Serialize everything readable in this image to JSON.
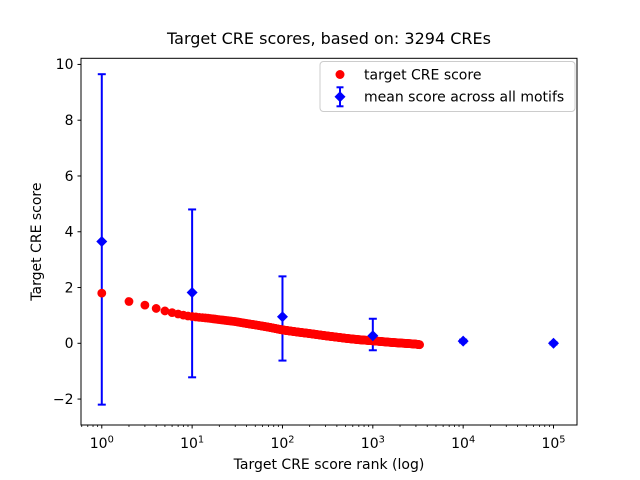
{
  "window": {
    "background": "#ffffff"
  },
  "chart_data": {
    "type": "scatter",
    "title": "Target CRE scores, based on: 3294 CREs",
    "xlabel": "Target CRE score rank (log)",
    "ylabel": "Target CRE score",
    "n_cres": 3294,
    "x_scale": "log",
    "xlim_log10": [
      -0.23,
      5.26
    ],
    "ylim": [
      -2.93,
      10.22
    ],
    "grid": false,
    "legend_position": "upper right",
    "x_tick_base": "10",
    "x_tick_exponents": [
      0,
      1,
      2,
      3,
      4,
      5
    ],
    "y_ticks": [
      {
        "value": -2,
        "label": "−2"
      },
      {
        "value": 0,
        "label": "0"
      },
      {
        "value": 2,
        "label": "2"
      },
      {
        "value": 4,
        "label": "4"
      },
      {
        "value": 6,
        "label": "6"
      },
      {
        "value": 8,
        "label": "8"
      },
      {
        "value": 10,
        "label": "10"
      }
    ],
    "series": [
      {
        "name": "target CRE score",
        "marker": "circle",
        "color": "#ff0000",
        "rank_score_samples": [
          [
            1,
            1.8
          ],
          [
            2,
            1.5
          ],
          [
            3,
            1.37
          ],
          [
            4,
            1.25
          ],
          [
            5,
            1.16
          ],
          [
            6,
            1.1
          ],
          [
            7,
            1.05
          ],
          [
            8,
            1.01
          ],
          [
            9,
            0.98
          ],
          [
            10,
            0.96
          ],
          [
            12,
            0.93
          ],
          [
            15,
            0.9
          ],
          [
            20,
            0.85
          ],
          [
            25,
            0.81
          ],
          [
            30,
            0.78
          ],
          [
            40,
            0.71
          ],
          [
            50,
            0.66
          ],
          [
            70,
            0.58
          ],
          [
            100,
            0.48
          ],
          [
            150,
            0.4
          ],
          [
            200,
            0.35
          ],
          [
            300,
            0.27
          ],
          [
            400,
            0.22
          ],
          [
            500,
            0.18
          ],
          [
            700,
            0.13
          ],
          [
            1000,
            0.09
          ],
          [
            1500,
            0.04
          ],
          [
            2000,
            0.01
          ],
          [
            2500,
            -0.01
          ],
          [
            3000,
            -0.03
          ],
          [
            3294,
            -0.05
          ]
        ],
        "rank_range": [
          1,
          3294
        ]
      },
      {
        "name": "mean score across all motifs",
        "marker": "diamond",
        "color": "#0000ff",
        "rank_mean_lo_hi": [
          [
            1,
            3.65,
            -2.2,
            9.65
          ],
          [
            10,
            1.82,
            -1.22,
            4.8
          ],
          [
            100,
            0.95,
            -0.62,
            2.4
          ],
          [
            1000,
            0.27,
            -0.25,
            0.88
          ],
          [
            10000,
            0.08,
            0.03,
            0.13
          ],
          [
            100000,
            0.0,
            -0.04,
            0.04
          ]
        ]
      }
    ]
  }
}
